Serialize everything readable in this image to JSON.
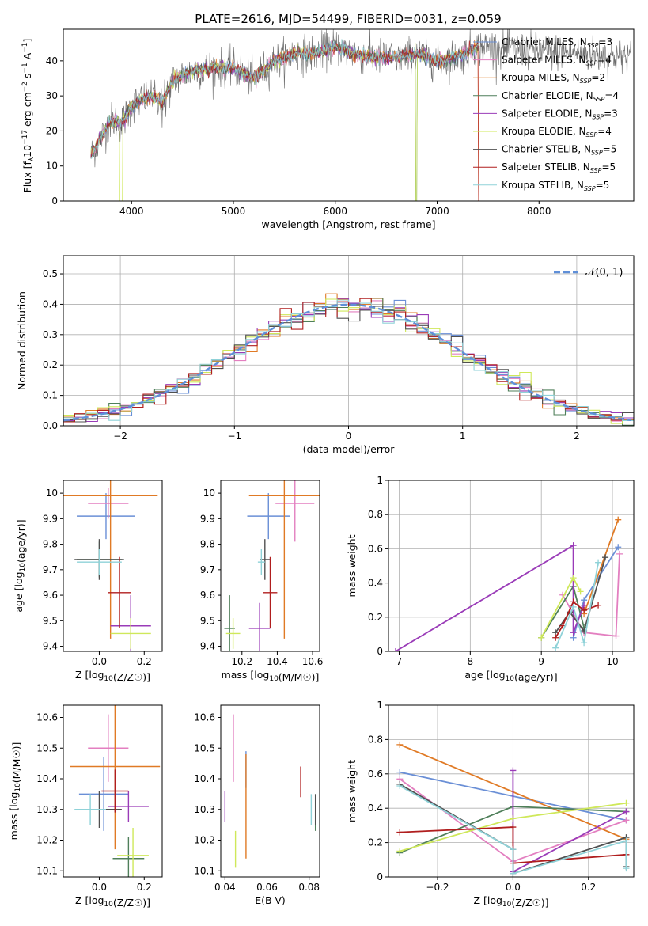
{
  "figure_title": "PLATE=2616, MJD=54499, FIBERID=0031, z=0.059",
  "colors": {
    "chabrier_miles": "#6a8fd6",
    "salpeter_miles": "#e37fc0",
    "kroupa_miles": "#e07a25",
    "chabrier_elodie": "#4f7f5a",
    "salpeter_elodie": "#9a3bb8",
    "kroupa_elodie": "#cfe85a",
    "chabrier_stelib": "#505050",
    "salpeter_stelib": "#b01e1e",
    "kroupa_stelib": "#8fd2d8"
  },
  "chart_data": [
    {
      "id": "spectrum",
      "type": "line",
      "xlabel": "wavelength [Angstrom, rest frame]",
      "ylabel": "Flux [f",
      "ylabel_parts": [
        "Flux [f",
        "λ",
        "10",
        "−17",
        " erg cm",
        "−2",
        " s",
        "−1",
        " A",
        "−1",
        "]"
      ],
      "xlim": [
        3330,
        8930
      ],
      "ylim": [
        0,
        49
      ],
      "xticks": [
        4000,
        5000,
        6000,
        7000,
        8000
      ],
      "yticks": [
        0,
        10,
        20,
        30,
        40
      ],
      "spectrum_knots": {
        "x": [
          3600,
          3700,
          3800,
          3900,
          4000,
          4100,
          4200,
          4300,
          4400,
          4500,
          4600,
          4800,
          5000,
          5200,
          5400,
          5600,
          5800,
          6000,
          6200,
          6400,
          6600,
          6800,
          7000,
          7200,
          7400
        ],
        "y": [
          13,
          18,
          23,
          22,
          27,
          29,
          30,
          28,
          34,
          36,
          37,
          38,
          38,
          35,
          40,
          42,
          42,
          44,
          42,
          41,
          41,
          42,
          40,
          41,
          44
        ]
      },
      "legend": [
        {
          "label": "Chabrier MILES, N",
          "sub": "SSP",
          "eq": "=3",
          "color_key": "chabrier_miles"
        },
        {
          "label": "Salpeter MILES, N",
          "sub": "SSP",
          "eq": "=4",
          "color_key": "salpeter_miles"
        },
        {
          "label": "Kroupa MILES, N",
          "sub": "SSP",
          "eq": "=2",
          "color_key": "kroupa_miles"
        },
        {
          "label": "Chabrier ELODIE, N",
          "sub": "SSP",
          "eq": "=4",
          "color_key": "chabrier_elodie"
        },
        {
          "label": "Salpeter ELODIE, N",
          "sub": "SSP",
          "eq": "=3",
          "color_key": "salpeter_elodie"
        },
        {
          "label": "Kroupa ELODIE, N",
          "sub": "SSP",
          "eq": "=4",
          "color_key": "kroupa_elodie"
        },
        {
          "label": "Chabrier STELIB, N",
          "sub": "SSP",
          "eq": "=5",
          "color_key": "chabrier_stelib"
        },
        {
          "label": "Salpeter STELIB, N",
          "sub": "SSP",
          "eq": "=5",
          "color_key": "salpeter_stelib"
        },
        {
          "label": "Kroupa STELIB, N",
          "sub": "SSP",
          "eq": "=5",
          "color_key": "kroupa_stelib"
        }
      ]
    },
    {
      "id": "residual_hist",
      "type": "bar",
      "xlabel": "(data-model)/error",
      "ylabel": "Normed distribution",
      "xlim": [
        -2.5,
        2.5
      ],
      "ylim": [
        0,
        0.56
      ],
      "xticks": [
        -2,
        -1,
        0,
        1,
        2
      ],
      "xtick_labels": [
        "−2",
        "−1",
        "0",
        "1",
        "2"
      ],
      "yticks": [
        0.0,
        0.1,
        0.2,
        0.3,
        0.4,
        0.5
      ],
      "ytick_labels": [
        "0.0",
        "0.1",
        "0.2",
        "0.3",
        "0.4",
        "0.5"
      ],
      "bin_width": 0.1,
      "legend": {
        "label": "𝒩(0, 1)"
      }
    },
    {
      "id": "age_vs_Z",
      "type": "scatter",
      "xlabel": "Z [log10(Z/Z☉)]",
      "ylabel": "age  [log10(age/yr)]",
      "xlim": [
        -0.16,
        0.28
      ],
      "ylim": [
        9.38,
        10.05
      ],
      "xticks": [
        0.0,
        0.2
      ],
      "xtick_labels": [
        "0.0",
        "0.2"
      ],
      "yticks": [
        9.4,
        9.5,
        9.6,
        9.7,
        9.8,
        9.9,
        10.0
      ],
      "points": [
        {
          "key": "chabrier_miles",
          "x": 0.03,
          "xerr": 0.13,
          "y": 9.91,
          "yerr": 0.09
        },
        {
          "key": "salpeter_miles",
          "x": 0.04,
          "xerr": 0.09,
          "y": 9.96,
          "yerr": 0.06
        },
        {
          "key": "kroupa_miles",
          "x": 0.05,
          "xerr": 0.21,
          "y": 9.99,
          "yerr": 0.56
        },
        {
          "key": "chabrier_elodie",
          "x": 0.0,
          "xerr": 0.1,
          "y": 9.74,
          "yerr": 0.07
        },
        {
          "key": "salpeter_elodie",
          "x": 0.14,
          "xerr": 0.09,
          "y": 9.48,
          "yerr": 0.12
        },
        {
          "key": "kroupa_elodie",
          "x": 0.14,
          "xerr": 0.09,
          "y": 9.45,
          "yerr": 0.06
        },
        {
          "key": "chabrier_stelib",
          "x": 0.0,
          "xerr": 0.11,
          "y": 9.74,
          "yerr": 0.08
        },
        {
          "key": "salpeter_stelib",
          "x": 0.09,
          "xerr": 0.05,
          "y": 9.61,
          "yerr": 0.14
        },
        {
          "key": "kroupa_stelib",
          "x": 0.0,
          "xerr": 0.1,
          "y": 9.73,
          "yerr": 0.05
        }
      ]
    },
    {
      "id": "age_vs_mass",
      "type": "scatter",
      "xlabel": "mass [log10(M/M☉)]",
      "ylabel": "",
      "xlim": [
        10.08,
        10.64
      ],
      "ylim": [
        9.38,
        10.05
      ],
      "xticks": [
        10.2,
        10.4,
        10.6
      ],
      "yticks": [
        9.4,
        9.5,
        9.6,
        9.7,
        9.8,
        9.9,
        10.0
      ],
      "points": [
        {
          "key": "chabrier_miles",
          "x": 10.35,
          "xerr": 0.12,
          "y": 9.91,
          "yerr": 0.09
        },
        {
          "key": "salpeter_miles",
          "x": 10.5,
          "xerr": 0.11,
          "y": 9.96,
          "yerr": 0.15
        },
        {
          "key": "kroupa_miles",
          "x": 10.44,
          "xerr": 0.2,
          "y": 9.99,
          "yerr": 0.56
        },
        {
          "key": "chabrier_elodie",
          "x": 10.13,
          "xerr": 0.03,
          "y": 9.47,
          "yerr": 0.13
        },
        {
          "key": "salpeter_elodie",
          "x": 10.3,
          "xerr": 0.06,
          "y": 9.47,
          "yerr": 0.1
        },
        {
          "key": "kroupa_elodie",
          "x": 10.15,
          "xerr": 0.04,
          "y": 9.45,
          "yerr": 0.06
        },
        {
          "key": "chabrier_stelib",
          "x": 10.33,
          "xerr": 0.03,
          "y": 9.74,
          "yerr": 0.08
        },
        {
          "key": "salpeter_stelib",
          "x": 10.36,
          "xerr": 0.04,
          "y": 9.61,
          "yerr": 0.14
        },
        {
          "key": "kroupa_stelib",
          "x": 10.31,
          "xerr": 0.02,
          "y": 9.73,
          "yerr": 0.05
        }
      ]
    },
    {
      "id": "mass_weight_vs_age",
      "type": "line",
      "xlabel": "age  [log10(age/yr)]",
      "ylabel": "mass weight",
      "xlim": [
        6.85,
        10.3
      ],
      "ylim": [
        0,
        1
      ],
      "xticks": [
        7,
        8,
        9,
        10
      ],
      "yticks": [
        0.0,
        0.2,
        0.4,
        0.6,
        0.8,
        1.0
      ],
      "series": [
        {
          "key": "chabrier_miles",
          "x": [
            9.45,
            9.6,
            10.08
          ],
          "y": [
            0.08,
            0.3,
            0.61
          ]
        },
        {
          "key": "salpeter_miles",
          "x": [
            9.3,
            9.6,
            10.05,
            10.1
          ],
          "y": [
            0.33,
            0.11,
            0.09,
            0.57
          ]
        },
        {
          "key": "kroupa_miles",
          "x": [
            9.6,
            10.08
          ],
          "y": [
            0.22,
            0.77
          ]
        },
        {
          "key": "chabrier_elodie",
          "x": [
            9.0,
            9.45,
            9.6
          ],
          "y": [
            0.08,
            0.38,
            0.14
          ]
        },
        {
          "key": "salpeter_elodie",
          "x": [
            6.95,
            9.45,
            9.45,
            9.6
          ],
          "y": [
            0.0,
            0.62,
            0.11,
            0.27
          ]
        },
        {
          "key": "kroupa_elodie",
          "x": [
            9.0,
            9.45,
            9.55
          ],
          "y": [
            0.08,
            0.43,
            0.35
          ]
        },
        {
          "key": "chabrier_stelib",
          "x": [
            9.2,
            9.4,
            9.6,
            9.9
          ],
          "y": [
            0.11,
            0.23,
            0.12,
            0.55
          ]
        },
        {
          "key": "salpeter_stelib",
          "x": [
            9.2,
            9.3,
            9.45,
            9.6,
            9.8
          ],
          "y": [
            0.08,
            0.15,
            0.29,
            0.24,
            0.27
          ]
        },
        {
          "key": "kroupa_stelib",
          "x": [
            9.2,
            9.45,
            9.6,
            9.8
          ],
          "y": [
            0.02,
            0.26,
            0.05,
            0.52
          ]
        }
      ]
    },
    {
      "id": "mass_vs_Z",
      "type": "scatter",
      "xlabel": "Z [log10(Z/Z☉)]",
      "ylabel": "mass [log10(M/M☉)]",
      "xlim": [
        -0.16,
        0.28
      ],
      "ylim": [
        10.08,
        10.64
      ],
      "xticks": [
        0.0,
        0.2
      ],
      "xtick_labels": [
        "0.0",
        "0.2"
      ],
      "yticks": [
        10.1,
        10.2,
        10.3,
        10.4,
        10.5,
        10.6
      ],
      "points": [
        {
          "key": "chabrier_miles",
          "x": 0.02,
          "xerr": 0.11,
          "y": 10.35,
          "yerr": 0.12
        },
        {
          "key": "salpeter_miles",
          "x": 0.04,
          "xerr": 0.09,
          "y": 10.5,
          "yerr": 0.11
        },
        {
          "key": "kroupa_miles",
          "x": 0.07,
          "xerr": 0.2,
          "y": 10.44,
          "yerr": 0.27
        },
        {
          "key": "chabrier_elodie",
          "x": 0.13,
          "xerr": 0.07,
          "y": 10.14,
          "yerr": 0.07
        },
        {
          "key": "salpeter_elodie",
          "x": 0.13,
          "xerr": 0.09,
          "y": 10.31,
          "yerr": 0.05
        },
        {
          "key": "kroupa_elodie",
          "x": 0.15,
          "xerr": 0.07,
          "y": 10.15,
          "yerr": 0.09
        },
        {
          "key": "chabrier_stelib",
          "x": 0.0,
          "xerr": 0.1,
          "y": 10.3,
          "yerr": 0.06
        },
        {
          "key": "salpeter_stelib",
          "x": 0.07,
          "xerr": 0.06,
          "y": 10.36,
          "yerr": 0.07
        },
        {
          "key": "kroupa_stelib",
          "x": -0.04,
          "xerr": 0.07,
          "y": 10.3,
          "yerr": 0.05
        }
      ]
    },
    {
      "id": "mass_vs_ebv",
      "type": "scatter",
      "xlabel": "E(B-V)",
      "ylabel": "",
      "xlim": [
        0.038,
        0.085
      ],
      "ylim": [
        10.08,
        10.64
      ],
      "xticks": [
        0.04,
        0.06,
        0.08
      ],
      "yticks": [
        10.1,
        10.2,
        10.3,
        10.4,
        10.5,
        10.6
      ],
      "points": [
        {
          "key": "chabrier_miles",
          "x": 0.05,
          "xerr": 0.0,
          "y": 10.43,
          "yerr": 0.06
        },
        {
          "key": "salpeter_miles",
          "x": 0.044,
          "xerr": 0.0,
          "y": 10.5,
          "yerr": 0.11
        },
        {
          "key": "kroupa_miles",
          "x": 0.05,
          "xerr": 0.0,
          "y": 10.31,
          "yerr": 0.17
        },
        {
          "key": "chabrier_elodie",
          "x": 0.083,
          "xerr": 0.0,
          "y": 10.29,
          "yerr": 0.06
        },
        {
          "key": "salpeter_elodie",
          "x": 0.04,
          "xerr": 0.0,
          "y": 10.31,
          "yerr": 0.05
        },
        {
          "key": "kroupa_elodie",
          "x": 0.045,
          "xerr": 0.0,
          "y": 10.17,
          "yerr": 0.06
        },
        {
          "key": "chabrier_stelib",
          "x": 0.083,
          "xerr": 0.0,
          "y": 10.3,
          "yerr": 0.05
        },
        {
          "key": "salpeter_stelib",
          "x": 0.076,
          "xerr": 0.0,
          "y": 10.39,
          "yerr": 0.05
        },
        {
          "key": "kroupa_stelib",
          "x": 0.081,
          "xerr": 0.0,
          "y": 10.3,
          "yerr": 0.05
        }
      ]
    },
    {
      "id": "mass_weight_vs_Z",
      "type": "line",
      "xlabel": "Z [log10(Z/Z☉)]",
      "ylabel": "mass weight",
      "xlim": [
        -0.33,
        0.32
      ],
      "ylim": [
        0,
        1
      ],
      "xticks": [
        -0.2,
        0.0,
        0.2
      ],
      "xtick_labels": [
        "−0.2",
        "0.0",
        "0.2"
      ],
      "yticks": [
        0.0,
        0.2,
        0.4,
        0.6,
        0.8,
        1.0
      ],
      "series": [
        {
          "key": "chabrier_miles",
          "x": [
            -0.3,
            0.3
          ],
          "y": [
            0.61,
            0.33
          ]
        },
        {
          "key": "salpeter_miles",
          "x": [
            -0.3,
            0.0,
            0.3
          ],
          "y": [
            0.57,
            0.09,
            0.33
          ]
        },
        {
          "key": "kroupa_miles",
          "x": [
            -0.3,
            0.3
          ],
          "y": [
            0.77,
            0.22
          ]
        },
        {
          "key": "chabrier_elodie",
          "x": [
            -0.3,
            0.0,
            0.3
          ],
          "y": [
            0.14,
            0.41,
            0.38
          ]
        },
        {
          "key": "salpeter_elodie",
          "x": [
            0.0,
            0.0,
            0.3
          ],
          "y": [
            0.62,
            0.03,
            0.38
          ]
        },
        {
          "key": "kroupa_elodie",
          "x": [
            -0.3,
            0.0,
            0.3
          ],
          "y": [
            0.15,
            0.34,
            0.43
          ]
        },
        {
          "key": "chabrier_stelib",
          "x": [
            -0.3,
            0.0,
            0.0,
            0.3,
            0.3
          ],
          "y": [
            0.54,
            0.16,
            0.02,
            0.23,
            0.06
          ]
        },
        {
          "key": "salpeter_stelib",
          "x": [
            -0.3,
            0.0,
            0.0,
            0.3
          ],
          "y": [
            0.26,
            0.29,
            0.08,
            0.13
          ]
        },
        {
          "key": "kroupa_stelib",
          "x": [
            -0.3,
            0.0,
            0.0,
            0.3,
            0.3
          ],
          "y": [
            0.53,
            0.16,
            0.02,
            0.21,
            0.05
          ]
        }
      ]
    }
  ]
}
